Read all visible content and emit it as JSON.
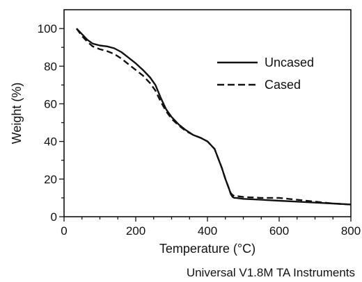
{
  "chart_data": {
    "type": "line",
    "title": "",
    "xlabel": "Temperature (°C)",
    "ylabel": "Weight (%)",
    "xlim": [
      0,
      800
    ],
    "ylim": [
      0,
      110
    ],
    "xticks": [
      0,
      200,
      400,
      600,
      800
    ],
    "yticks": [
      0,
      20,
      40,
      60,
      80,
      100
    ],
    "grid": false,
    "legend_position": "right-center",
    "series": [
      {
        "name": "Uncased",
        "style": "solid",
        "x": [
          35,
          50,
          65,
          80,
          100,
          120,
          140,
          160,
          180,
          200,
          220,
          240,
          255,
          270,
          285,
          300,
          320,
          340,
          360,
          380,
          400,
          420,
          430,
          440,
          450,
          460,
          465,
          470,
          475,
          480,
          500,
          550,
          600,
          650,
          700,
          750,
          800
        ],
        "values": [
          100,
          97,
          94,
          92,
          91,
          90.5,
          89.5,
          87.5,
          84.5,
          81.5,
          78,
          74,
          70,
          63,
          57,
          53,
          49,
          46,
          43.5,
          42,
          40,
          36,
          31,
          26,
          20,
          15,
          12,
          10.5,
          10,
          10,
          9.5,
          9,
          8.5,
          8,
          7.5,
          7,
          6.5
        ]
      },
      {
        "name": "Cased",
        "style": "dashed",
        "x": [
          35,
          50,
          65,
          80,
          100,
          120,
          140,
          160,
          180,
          200,
          220,
          240,
          255,
          270,
          285,
          300,
          320,
          340,
          360,
          380,
          400,
          420,
          430,
          440,
          450,
          460,
          465,
          470,
          475,
          480,
          500,
          550,
          600,
          650,
          700,
          750,
          800
        ],
        "values": [
          100,
          96,
          93,
          90.5,
          89,
          88,
          86.5,
          84,
          81,
          78,
          75,
          71,
          67,
          61,
          56,
          52,
          48.5,
          45.5,
          43.5,
          42,
          40,
          36,
          31,
          26,
          20,
          15,
          12.5,
          11.5,
          11,
          11,
          10.5,
          10,
          10,
          9,
          8,
          7,
          6.5
        ]
      }
    ]
  },
  "footer": "Universal V1.8M TA Instruments"
}
